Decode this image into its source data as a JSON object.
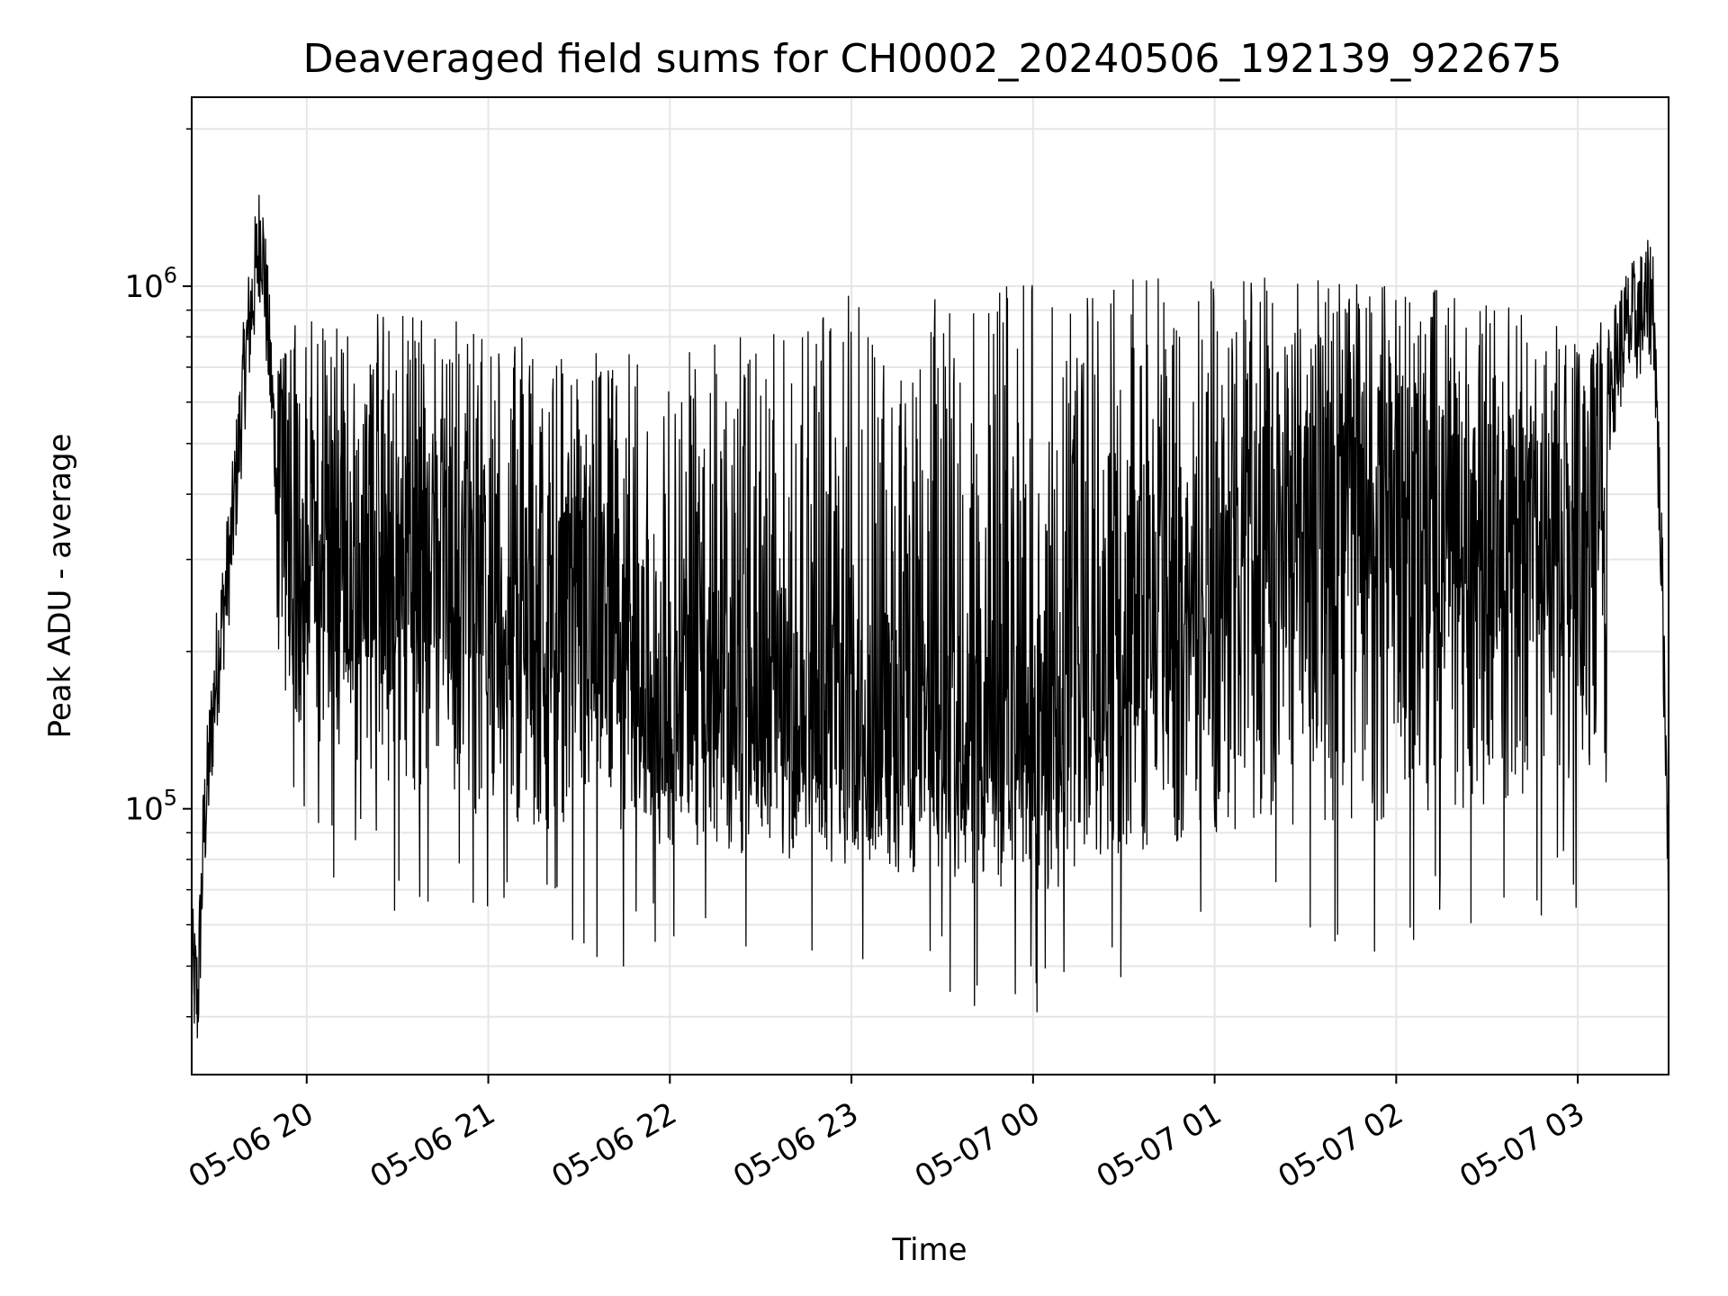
{
  "chart_data": {
    "type": "line",
    "title": "Deaveraged field sums for CH0002_20240506_192139_922675",
    "xlabel": "Time",
    "ylabel": "Peak ADU - average",
    "yscale": "log",
    "ylim": [
      31000,
      2300000
    ],
    "xlim": [
      "2024-05-06 19:22",
      "2024-05-07 03:30"
    ],
    "x_ticks": [
      {
        "value": "2024-05-06 20:00",
        "label": "05-06 20"
      },
      {
        "value": "2024-05-06 21:00",
        "label": "05-06 21"
      },
      {
        "value": "2024-05-06 22:00",
        "label": "05-06 22"
      },
      {
        "value": "2024-05-06 23:00",
        "label": "05-06 23"
      },
      {
        "value": "2024-05-07 00:00",
        "label": "05-07 00"
      },
      {
        "value": "2024-05-07 01:00",
        "label": "05-07 01"
      },
      {
        "value": "2024-05-07 02:00",
        "label": "05-07 02"
      },
      {
        "value": "2024-05-07 03:00",
        "label": "05-07 03"
      }
    ],
    "y_ticks": [
      {
        "value": 100000,
        "base": "10",
        "exp": "5"
      },
      {
        "value": 1000000,
        "base": "10",
        "exp": "6"
      }
    ],
    "grid": true,
    "series": [
      {
        "color": "#000000",
        "description_points": [
          {
            "x": "2024-05-06 19:22",
            "y": 50000
          },
          {
            "x": "2024-05-06 19:24",
            "y": 43000
          },
          {
            "x": "2024-05-06 19:26",
            "y": 90000
          },
          {
            "x": "2024-05-06 19:30",
            "y": 180000
          },
          {
            "x": "2024-05-06 19:35",
            "y": 320000
          },
          {
            "x": "2024-05-06 19:40",
            "y": 750000
          },
          {
            "x": "2024-05-06 19:45",
            "y": 1300000
          },
          {
            "x": "2024-05-06 19:50",
            "y": 450000
          },
          {
            "x": "2024-05-06 20:00",
            "y": 300000
          },
          {
            "x": "2024-05-06 20:30",
            "y": 320000
          },
          {
            "x": "2024-05-06 21:00",
            "y": 280000
          },
          {
            "x": "2024-05-06 21:30",
            "y": 240000
          },
          {
            "x": "2024-05-06 22:00",
            "y": 160000
          },
          {
            "x": "2024-05-06 22:30",
            "y": 170000
          },
          {
            "x": "2024-05-06 23:00",
            "y": 140000
          },
          {
            "x": "2024-05-06 23:30",
            "y": 150000
          },
          {
            "x": "2024-05-07 00:00",
            "y": 140000
          },
          {
            "x": "2024-05-07 00:30",
            "y": 230000
          },
          {
            "x": "2024-05-07 01:00",
            "y": 300000
          },
          {
            "x": "2024-05-07 01:30",
            "y": 360000
          },
          {
            "x": "2024-05-07 01:50",
            "y": 420000
          },
          {
            "x": "2024-05-07 02:30",
            "y": 330000
          },
          {
            "x": "2024-05-07 03:00",
            "y": 380000
          },
          {
            "x": "2024-05-07 03:15",
            "y": 800000
          },
          {
            "x": "2024-05-07 03:25",
            "y": 950000
          },
          {
            "x": "2024-05-07 03:28",
            "y": 250000
          },
          {
            "x": "2024-05-07 03:30",
            "y": 80000
          }
        ],
        "band_low": [
          {
            "x": "2024-05-06 19:50",
            "y": 150000
          },
          {
            "x": "2024-05-06 20:30",
            "y": 110000
          },
          {
            "x": "2024-05-06 21:00",
            "y": 95000
          },
          {
            "x": "2024-05-06 22:00",
            "y": 85000
          },
          {
            "x": "2024-05-06 23:00",
            "y": 78000
          },
          {
            "x": "2024-05-07 00:00",
            "y": 68000
          },
          {
            "x": "2024-05-07 01:00",
            "y": 90000
          },
          {
            "x": "2024-05-07 02:00",
            "y": 95000
          },
          {
            "x": "2024-05-07 03:00",
            "y": 110000
          }
        ],
        "band_high": [
          {
            "x": "2024-05-06 19:50",
            "y": 750000
          },
          {
            "x": "2024-05-06 20:30",
            "y": 800000
          },
          {
            "x": "2024-05-06 21:00",
            "y": 720000
          },
          {
            "x": "2024-05-06 22:00",
            "y": 600000
          },
          {
            "x": "2024-05-06 23:00",
            "y": 750000
          },
          {
            "x": "2024-05-07 00:00",
            "y": 800000
          },
          {
            "x": "2024-05-07 01:00",
            "y": 900000
          },
          {
            "x": "2024-05-07 02:00",
            "y": 900000
          },
          {
            "x": "2024-05-07 03:00",
            "y": 750000
          }
        ]
      }
    ]
  }
}
